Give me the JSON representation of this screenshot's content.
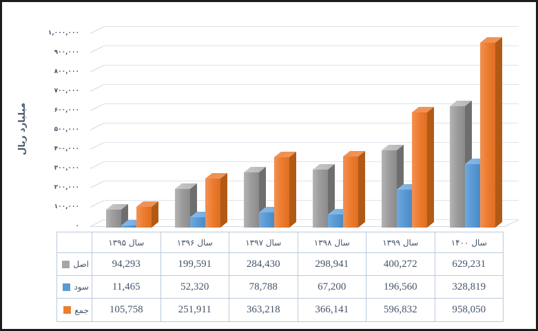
{
  "chart_data": {
    "type": "bar",
    "style": "3d-clustered-column",
    "title": "",
    "xlabel": "",
    "ylabel": "میلیارد ریال",
    "categories": [
      "سال ۱۳۹۵",
      "سال ۱۳۹۶",
      "سال ۱۳۹۷",
      "سال ۱۳۹۸",
      "سال ۱۳۹۹",
      "سال ۱۴۰۰"
    ],
    "series": [
      {
        "name": "اصل",
        "color": "#a6a6a6",
        "values": [
          94293,
          199591,
          284430,
          298941,
          400272,
          629231
        ],
        "display_values": [
          "94,293",
          "199,591",
          "284,430",
          "298,941",
          "400,272",
          "629,231"
        ],
        "shades": {
          "front_light": "#b4b4b4",
          "front": "#9d9d9d",
          "front_dark": "#8b8b8b",
          "top": "#c9c9c9",
          "side": "#6e6e6e"
        }
      },
      {
        "name": "سود",
        "color": "#5b9bd5",
        "values": [
          11465,
          52320,
          78788,
          67200,
          196560,
          328819
        ],
        "display_values": [
          "11,465",
          "52,320",
          "78,788",
          "67,200",
          "196,560",
          "328,819"
        ],
        "shades": {
          "front_light": "#6fa9dd",
          "front": "#5b9bd5",
          "front_dark": "#4a8bc6",
          "top": "#8cbae5",
          "side": "#3d6e9e"
        }
      },
      {
        "name": "جمع",
        "color": "#ed7d31",
        "values": [
          105758,
          251911,
          363218,
          366141,
          596832,
          958050
        ],
        "display_values": [
          "105,758",
          "251,911",
          "363,218",
          "366,141",
          "596,832",
          "958,050"
        ],
        "shades": {
          "front_light": "#f29254",
          "front": "#ed7d31",
          "front_dark": "#df6e21",
          "top": "#ef9054",
          "side": "#b05a15"
        }
      }
    ],
    "y_axis": {
      "min": 0,
      "max": 1000000,
      "step": 100000,
      "tick_labels": [
        "۰",
        "۱۰۰,۰۰۰",
        "۲۰۰,۰۰۰",
        "۳۰۰,۰۰۰",
        "۴۰۰,۰۰۰",
        "۵۰۰,۰۰۰",
        "۶۰۰,۰۰۰",
        "۷۰۰,۰۰۰",
        "۸۰۰,۰۰۰",
        "۹۰۰,۰۰۰",
        "۱,۰۰۰,۰۰۰"
      ]
    },
    "ylim": [
      0,
      1000000
    ],
    "grid": true,
    "legend_position": "data-table-left-column"
  },
  "colors": {
    "text": "#44546a",
    "gridline": "#dde2eb",
    "wall_line": "#d2d8e3",
    "table_border": "#b9c9dc",
    "frame_border": "#1c1c1c",
    "background": "#ffffff"
  }
}
